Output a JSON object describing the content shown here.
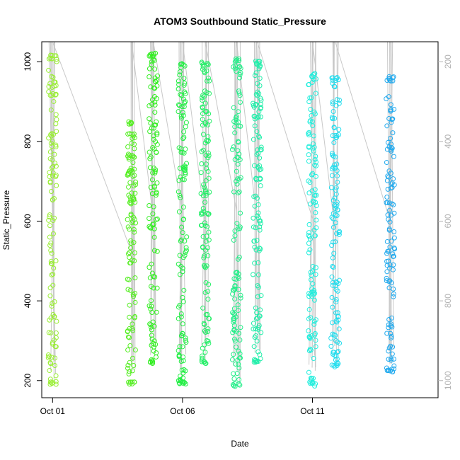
{
  "chart_data": {
    "type": "scatter",
    "title": "ATOM3 Southbound Static_Pressure",
    "xlabel": "Date",
    "ylabel": "Static_Pressure",
    "x_ticks": [
      {
        "date": "2009-10-01",
        "label": "Oct 01"
      },
      {
        "date": "2009-10-06",
        "label": "Oct 06"
      },
      {
        "date": "2009-10-11",
        "label": "Oct 11"
      }
    ],
    "xlim": [
      "2009-09-30T14:00",
      "2009-10-15T20:00"
    ],
    "ylim": [
      157,
      1050
    ],
    "y_ticks": [
      200,
      400,
      600,
      800,
      1000
    ],
    "y2_ticks": [
      200,
      400,
      600,
      800,
      1000
    ],
    "y2_reversed": true,
    "y2_color": "#b3b3b3",
    "trajectory_color": "#c8c8c8",
    "marker": "open-circle",
    "profiles": [
      {
        "time": "2009-10-01T00:00",
        "color": "#99ee33",
        "p_min": 195,
        "p_max": 1012
      },
      {
        "time": "2009-10-04T01:00",
        "color": "#55ee22",
        "p_min": 195,
        "p_max": 848
      },
      {
        "time": "2009-10-04T21:00",
        "color": "#33ee22",
        "p_min": 248,
        "p_max": 1018
      },
      {
        "time": "2009-10-06T00:00",
        "color": "#22ee44",
        "p_min": 195,
        "p_max": 990
      },
      {
        "time": "2009-10-06T21:00",
        "color": "#22ee66",
        "p_min": 248,
        "p_max": 994
      },
      {
        "time": "2009-10-08T02:00",
        "color": "#22ee88",
        "p_min": 190,
        "p_max": 1004
      },
      {
        "time": "2009-10-08T21:00",
        "color": "#22eeaa",
        "p_min": 248,
        "p_max": 998
      },
      {
        "time": "2009-10-11T00:00",
        "color": "#22eedd",
        "p_min": 190,
        "p_max": 966
      },
      {
        "time": "2009-10-11T21:00",
        "color": "#22ddee",
        "p_min": 238,
        "p_max": 956
      },
      {
        "time": "2009-10-14T00:00",
        "color": "#22aaee",
        "p_min": 225,
        "p_max": 958
      }
    ]
  }
}
